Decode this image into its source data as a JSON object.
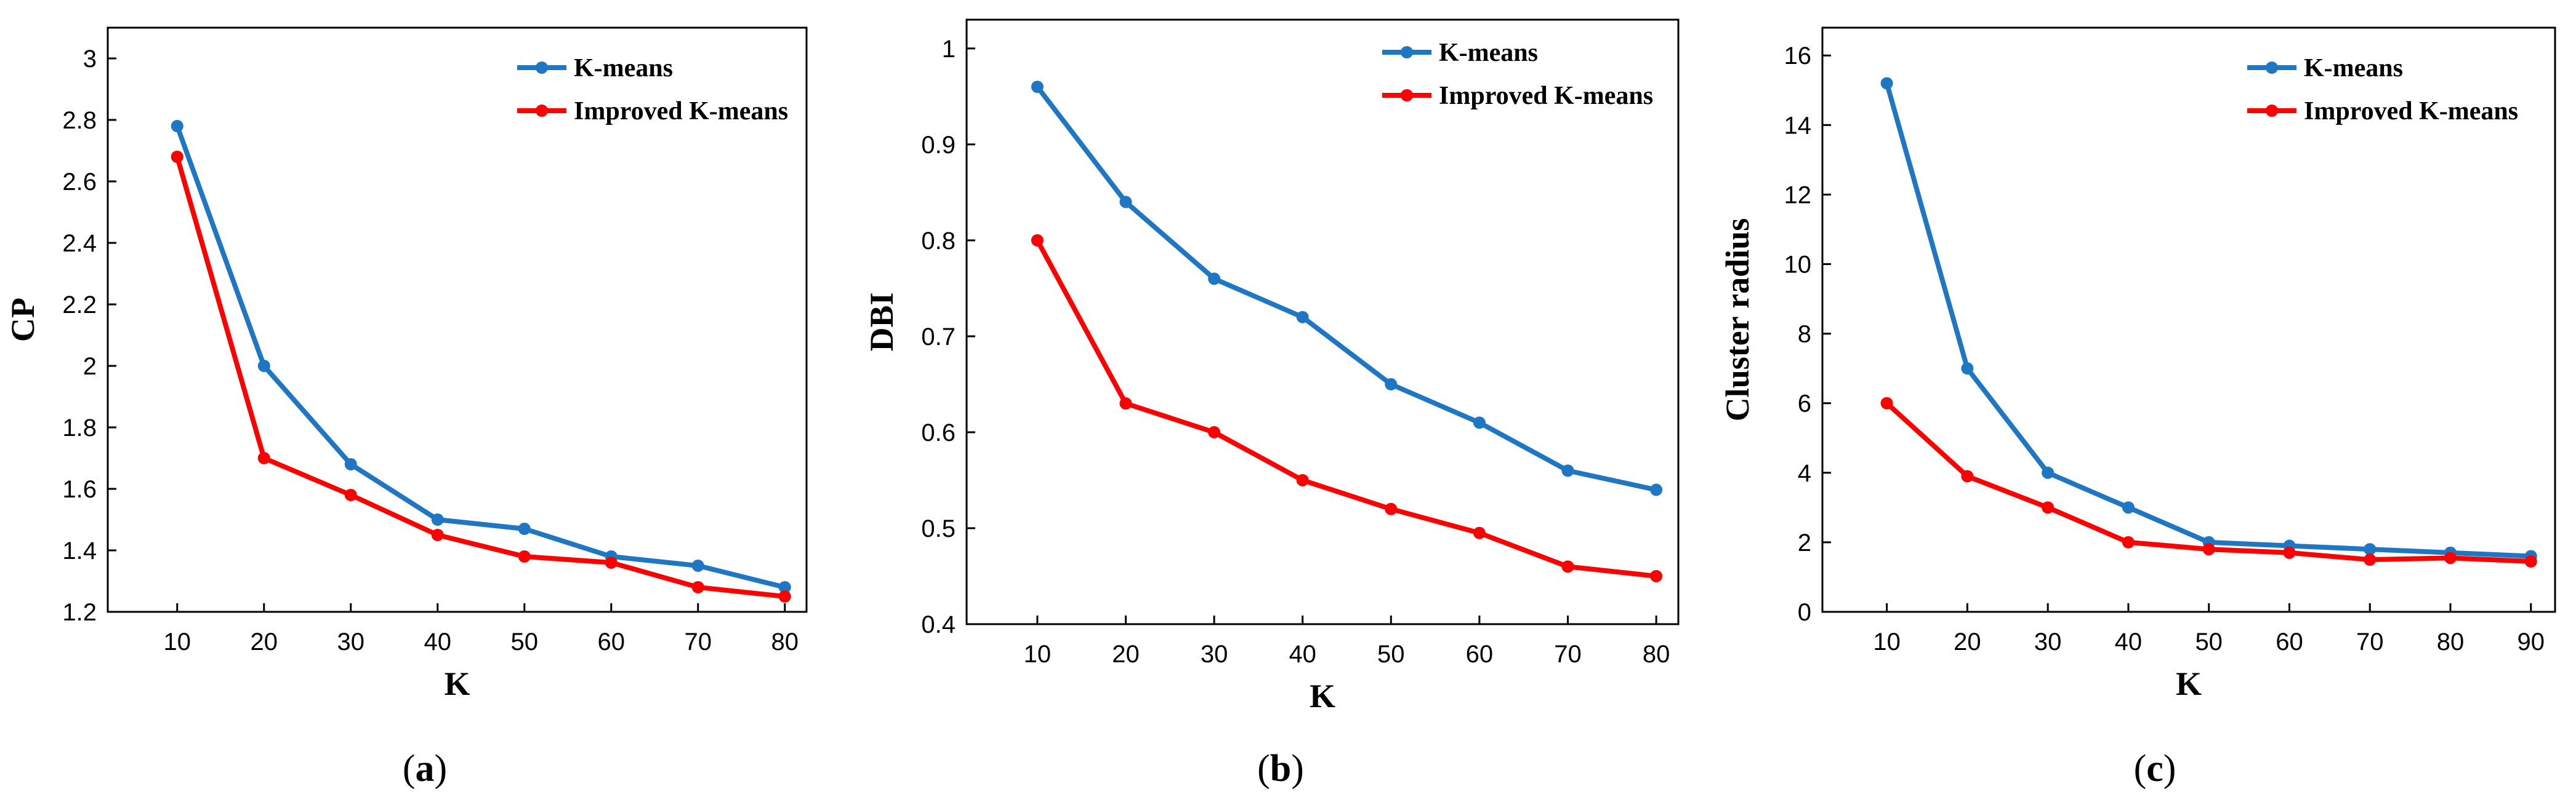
{
  "colors": {
    "kmeans": "#1f77c4",
    "improved": "#ff0000",
    "axis": "#000000"
  },
  "chart_data": [
    {
      "type": "line",
      "caption_letter": "a",
      "ylabel": "CP",
      "xlabel": "K",
      "x": [
        10,
        20,
        30,
        40,
        50,
        60,
        70,
        80
      ],
      "xlim": [
        2,
        82.5
      ],
      "ylim": [
        1.2,
        3.1
      ],
      "yticks": [
        1.2,
        1.4,
        1.6,
        1.8,
        2,
        2.2,
        2.4,
        2.6,
        2.8,
        3
      ],
      "ytick_labels": [
        "1.2",
        "1.4",
        "1.6",
        "1.8",
        "2",
        "2.2",
        "2.4",
        "2.6",
        "2.8",
        "3"
      ],
      "xticks": [
        10,
        20,
        30,
        40,
        50,
        60,
        70,
        80
      ],
      "xtick_labels": [
        "10",
        "20",
        "30",
        "40",
        "50",
        "60",
        "70",
        "80"
      ],
      "legend_position": "top-right",
      "series": [
        {
          "name": "K-means",
          "color": "#1f77c4",
          "values": [
            2.78,
            2.0,
            1.68,
            1.5,
            1.47,
            1.38,
            1.35,
            1.28
          ]
        },
        {
          "name": "Improved K-means",
          "color": "#ff0000",
          "values": [
            2.68,
            1.7,
            1.58,
            1.45,
            1.38,
            1.36,
            1.28,
            1.25
          ]
        }
      ]
    },
    {
      "type": "line",
      "caption_letter": "b",
      "ylabel": "DBI",
      "xlabel": "K",
      "x": [
        10,
        20,
        30,
        40,
        50,
        60,
        70,
        80
      ],
      "xlim": [
        2,
        82.5
      ],
      "ylim": [
        0.4,
        1.03
      ],
      "yticks": [
        0.4,
        0.5,
        0.6,
        0.7,
        0.8,
        0.9,
        1
      ],
      "ytick_labels": [
        "0.4",
        "0.5",
        "0.6",
        "0.7",
        "0.8",
        "0.9",
        "1"
      ],
      "xticks": [
        10,
        20,
        30,
        40,
        50,
        60,
        70,
        80
      ],
      "xtick_labels": [
        "10",
        "20",
        "30",
        "40",
        "50",
        "60",
        "70",
        "80"
      ],
      "legend_position": "top-right",
      "series": [
        {
          "name": "K-means",
          "color": "#1f77c4",
          "values": [
            0.96,
            0.84,
            0.76,
            0.72,
            0.65,
            0.61,
            0.56,
            0.54
          ]
        },
        {
          "name": "Improved K-means",
          "color": "#ff0000",
          "values": [
            0.8,
            0.63,
            0.6,
            0.55,
            0.52,
            0.495,
            0.46,
            0.45
          ]
        }
      ]
    },
    {
      "type": "line",
      "caption_letter": "c",
      "ylabel": "Cluster radius",
      "xlabel": "K",
      "x": [
        10,
        20,
        30,
        40,
        50,
        60,
        70,
        80,
        90
      ],
      "xlim": [
        2,
        93
      ],
      "ylim": [
        0,
        16.8
      ],
      "yticks": [
        0,
        2,
        4,
        6,
        8,
        10,
        12,
        14,
        16
      ],
      "ytick_labels": [
        "0",
        "2",
        "4",
        "6",
        "8",
        "10",
        "12",
        "14",
        "16"
      ],
      "xticks": [
        10,
        20,
        30,
        40,
        50,
        60,
        70,
        80,
        90
      ],
      "xtick_labels": [
        "10",
        "20",
        "30",
        "40",
        "50",
        "60",
        "70",
        "80",
        "90"
      ],
      "legend_position": "top-right",
      "series": [
        {
          "name": "K-means",
          "color": "#1f77c4",
          "values": [
            15.2,
            7.0,
            4.0,
            3.0,
            2.0,
            1.9,
            1.8,
            1.7,
            1.6
          ]
        },
        {
          "name": "Improved K-means",
          "color": "#ff0000",
          "values": [
            6.0,
            3.9,
            3.0,
            2.0,
            1.8,
            1.7,
            1.5,
            1.55,
            1.45
          ]
        }
      ]
    }
  ]
}
